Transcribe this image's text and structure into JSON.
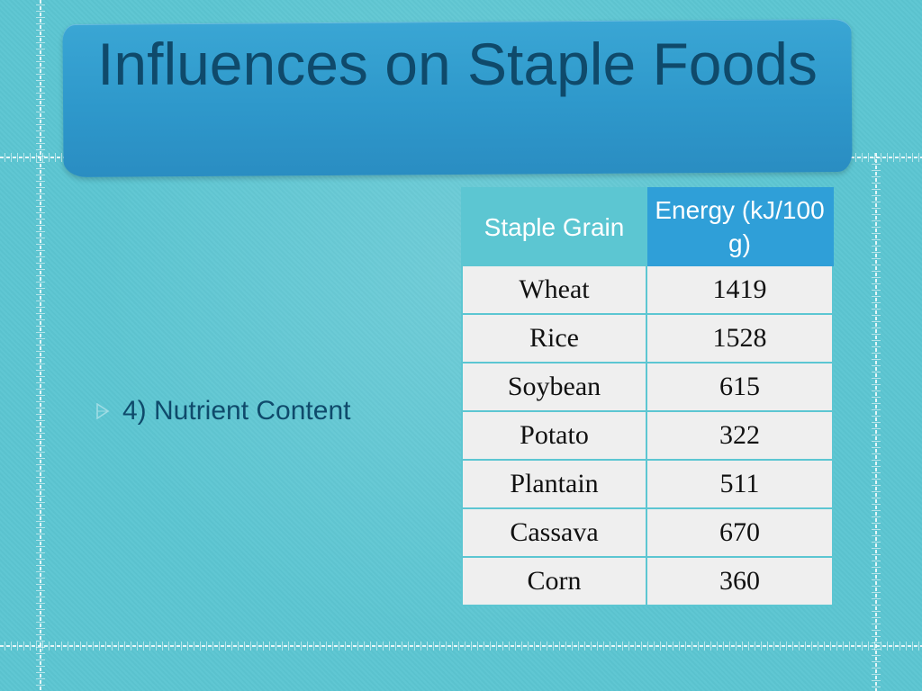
{
  "slide": {
    "title": "Influences on Staple Foods",
    "bullet_text": "4) Nutrient Content",
    "bullet_icon": "triangle-bullet-icon"
  },
  "table": {
    "headers": [
      "Staple Grain",
      "Energy (kJ/100 g)"
    ],
    "rows": [
      [
        "Wheat",
        "1419"
      ],
      [
        "Rice",
        "1528"
      ],
      [
        "Soybean",
        "615"
      ],
      [
        "Potato",
        "322"
      ],
      [
        "Plantain",
        "511"
      ],
      [
        "Cassava",
        "670"
      ],
      [
        "Corn",
        "360"
      ]
    ]
  },
  "colors": {
    "background": "#5cc6d2",
    "title_banner": "#2e98cb",
    "title_text": "#0f4a6b",
    "header_fill": "#2f9fd8",
    "cell_fill": "#efefef"
  }
}
